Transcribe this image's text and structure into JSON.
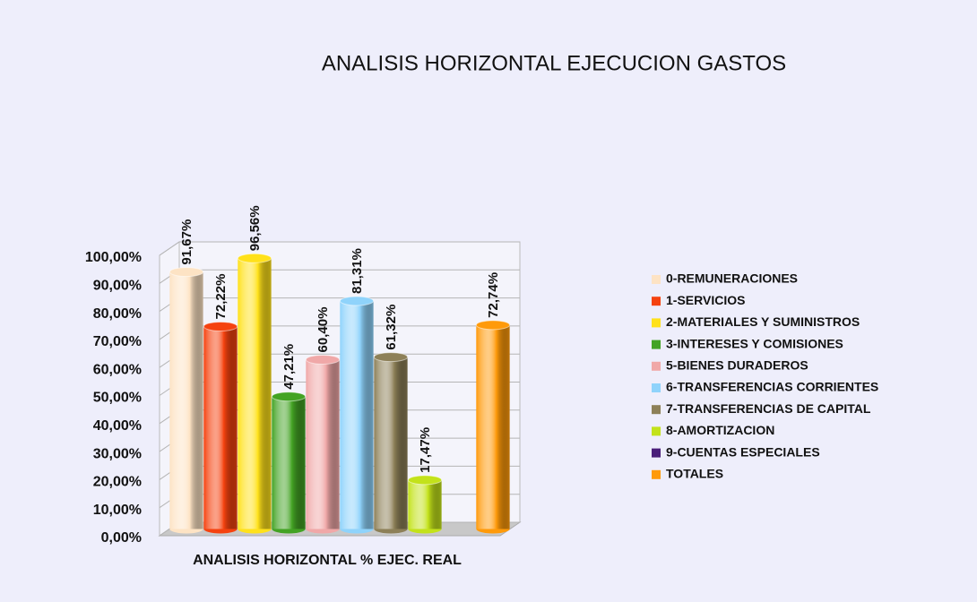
{
  "chart_data": {
    "type": "bar3d",
    "title": "ANALISIS HORIZONTAL EJECUCION GASTOS",
    "x_label": "ANALISIS HORIZONTAL % EJEC. REAL",
    "ylim": [
      0,
      100
    ],
    "yticks": [
      {
        "value": 0,
        "label": "0,00%"
      },
      {
        "value": 10,
        "label": "10,00%"
      },
      {
        "value": 20,
        "label": "20,00%"
      },
      {
        "value": 30,
        "label": "30,00%"
      },
      {
        "value": 40,
        "label": "40,00%"
      },
      {
        "value": 50,
        "label": "50,00%"
      },
      {
        "value": 60,
        "label": "60,00%"
      },
      {
        "value": 70,
        "label": "70,00%"
      },
      {
        "value": 80,
        "label": "80,00%"
      },
      {
        "value": 90,
        "label": "90,00%"
      },
      {
        "value": 100,
        "label": "100,00%"
      }
    ],
    "grid": true,
    "legend": "right",
    "series": [
      {
        "name": "0-REMUNERACIONES",
        "color": "#fde3c4",
        "values": [
          91.67
        ],
        "value_labels": [
          "91,67%"
        ]
      },
      {
        "name": "1-SERVICIOS",
        "color": "#f5420f",
        "values": [
          72.22
        ],
        "value_labels": [
          "72,22%"
        ]
      },
      {
        "name": "2-MATERIALES Y SUMINISTROS",
        "color": "#ffe11a",
        "values": [
          96.56
        ],
        "value_labels": [
          "96,56%"
        ]
      },
      {
        "name": "3-INTERESES Y COMISIONES",
        "color": "#43a324",
        "values": [
          47.21
        ],
        "value_labels": [
          "47,21%"
        ]
      },
      {
        "name": "5-BIENES DURADEROS",
        "color": "#f0a8a8",
        "values": [
          60.4
        ],
        "value_labels": [
          "60,40%"
        ]
      },
      {
        "name": "6-TRANSFERENCIAS CORRIENTES",
        "color": "#8fd3fb",
        "values": [
          81.31
        ],
        "value_labels": [
          "81,31%"
        ]
      },
      {
        "name": "7-TRANSFERENCIAS DE CAPITAL",
        "color": "#8d8058",
        "values": [
          61.32
        ],
        "value_labels": [
          "61,32%"
        ]
      },
      {
        "name": "8-AMORTIZACION",
        "color": "#c3e21a",
        "values": [
          17.47
        ],
        "value_labels": [
          "17,47%"
        ]
      },
      {
        "name": "9-CUENTAS ESPECIALES",
        "color": "#4a1f7a",
        "values": [
          null
        ],
        "value_labels": [
          null
        ]
      },
      {
        "name": "TOTALES",
        "color": "#ff9a0a",
        "values": [
          72.74
        ],
        "value_labels": [
          "72,74%"
        ]
      }
    ]
  }
}
